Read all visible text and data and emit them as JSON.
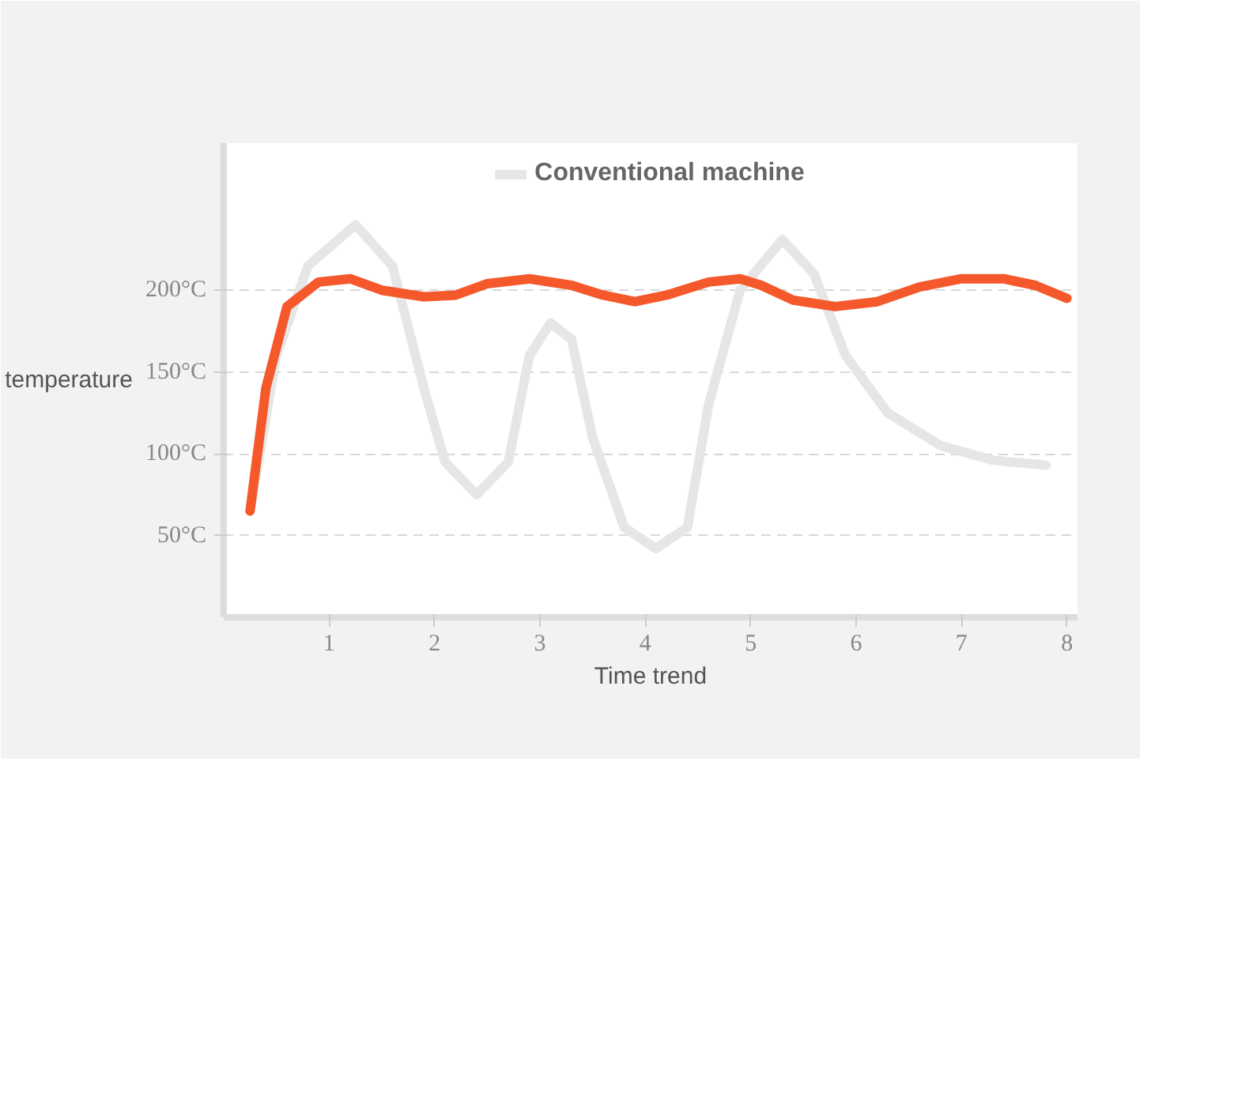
{
  "chart_data": {
    "type": "line",
    "xlabel": "Time trend",
    "ylabel": "temperature",
    "xlim": [
      0,
      8.1
    ],
    "ylim": [
      0,
      290
    ],
    "xticks": [
      1,
      2,
      3,
      4,
      5,
      6,
      7,
      8
    ],
    "yticks": [
      {
        "value": 50,
        "label": "50°C"
      },
      {
        "value": 100,
        "label": "100°C"
      },
      {
        "value": 150,
        "label": "150°C"
      },
      {
        "value": 200,
        "label": "200°C"
      }
    ],
    "grid": "y",
    "legend": "top",
    "line_style": "solid",
    "series": [
      {
        "name": "Conventional machine",
        "color": "#e6e6e6",
        "x": [
          0.25,
          0.5,
          0.8,
          1.25,
          1.6,
          1.9,
          2.1,
          2.4,
          2.7,
          2.9,
          3.1,
          3.3,
          3.5,
          3.8,
          4.1,
          4.4,
          4.6,
          4.9,
          5.3,
          5.6,
          5.9,
          6.3,
          6.8,
          7.3,
          7.8
        ],
        "values": [
          65,
          160,
          215,
          240,
          215,
          140,
          95,
          75,
          95,
          160,
          180,
          170,
          110,
          55,
          42,
          55,
          130,
          200,
          231,
          210,
          160,
          125,
          105,
          96,
          93
        ]
      },
      {
        "color": "#f4582b",
        "x": [
          0.25,
          0.4,
          0.6,
          0.9,
          1.2,
          1.5,
          1.9,
          2.2,
          2.5,
          2.9,
          3.3,
          3.6,
          3.9,
          4.2,
          4.6,
          4.9,
          5.1,
          5.4,
          5.8,
          6.2,
          6.6,
          7.0,
          7.4,
          7.7,
          8.0
        ],
        "values": [
          65,
          140,
          190,
          205,
          207,
          200,
          196,
          197,
          204,
          207,
          203,
          197,
          193,
          197,
          205,
          207,
          203,
          194,
          190,
          193,
          202,
          207,
          207,
          203,
          195
        ]
      }
    ]
  }
}
